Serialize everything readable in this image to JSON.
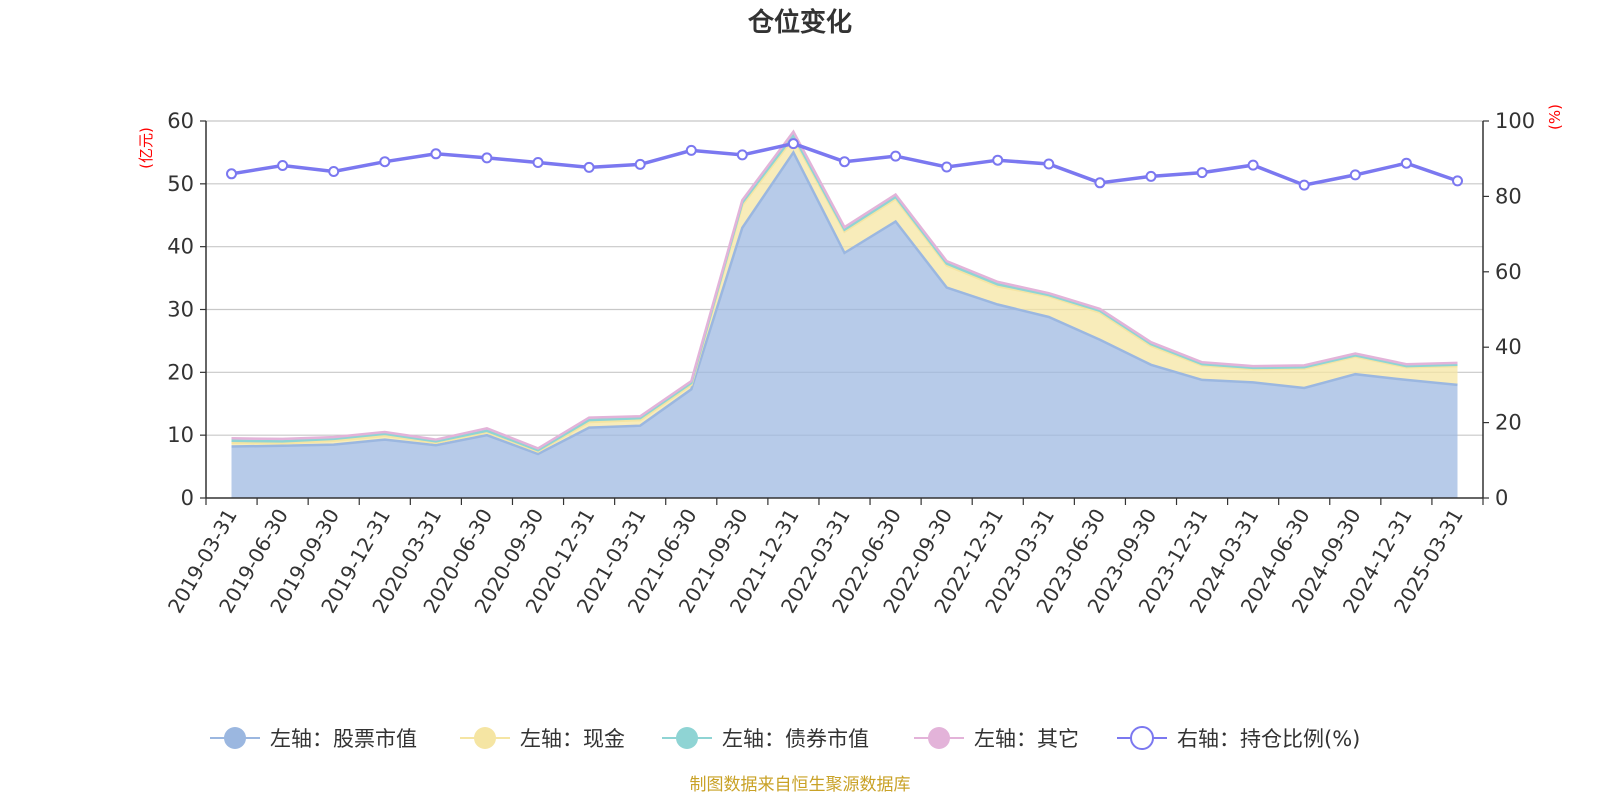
{
  "chart_data": {
    "type": "area",
    "title": "仓位变化",
    "left_axis_unit": "(亿元)",
    "right_axis_unit": "(%)",
    "ylim_left": [
      0,
      60
    ],
    "yticks_left": [
      0,
      10,
      20,
      30,
      40,
      50,
      60
    ],
    "ylim_right": [
      0,
      100
    ],
    "yticks_right": [
      0,
      20,
      40,
      60,
      80,
      100
    ],
    "grid": true,
    "legend_position": "bottom",
    "categories": [
      "2019-03-31",
      "2019-06-30",
      "2019-09-30",
      "2019-12-31",
      "2020-03-31",
      "2020-06-30",
      "2020-09-30",
      "2020-12-31",
      "2021-03-31",
      "2021-06-30",
      "2021-09-30",
      "2021-12-31",
      "2022-03-31",
      "2022-06-30",
      "2022-09-30",
      "2022-12-31",
      "2023-03-31",
      "2023-06-30",
      "2023-09-30",
      "2023-12-31",
      "2024-03-31",
      "2024-06-30",
      "2024-09-30",
      "2024-12-31",
      "2025-03-31"
    ],
    "series": [
      {
        "name": "左轴：股票市值",
        "axis": "left",
        "stack": true,
        "color": "#9bb7e0",
        "values": [
          8.2,
          8.3,
          8.5,
          9.3,
          8.4,
          10.0,
          7.0,
          11.2,
          11.5,
          17.3,
          43.0,
          55.0,
          39.0,
          44.0,
          33.5,
          30.8,
          28.8,
          25.2,
          21.2,
          18.8,
          18.4,
          17.5,
          19.7,
          18.8,
          18.0
        ]
      },
      {
        "name": "左轴：现金",
        "axis": "left",
        "stack": true,
        "color": "#f5e5a3",
        "values": [
          0.6,
          0.4,
          0.6,
          0.6,
          0.4,
          0.5,
          0.4,
          0.9,
          0.9,
          0.7,
          3.6,
          2.3,
          3.4,
          3.6,
          3.5,
          2.9,
          3.3,
          4.3,
          3.0,
          2.3,
          2.1,
          3.1,
          2.8,
          2.0,
          3.0
        ]
      },
      {
        "name": "左轴：债券市值",
        "axis": "left",
        "stack": true,
        "color": "#8fd4d4",
        "values": [
          0.3,
          0.3,
          0.3,
          0.3,
          0.2,
          0.2,
          0.2,
          0.3,
          0.3,
          0.3,
          0.4,
          0.4,
          0.3,
          0.3,
          0.3,
          0.3,
          0.2,
          0.3,
          0.3,
          0.2,
          0.2,
          0.2,
          0.2,
          0.2,
          0.2
        ]
      },
      {
        "name": "左轴：其它",
        "axis": "left",
        "stack": true,
        "color": "#e3b3d9",
        "values": [
          0.4,
          0.4,
          0.3,
          0.3,
          0.3,
          0.4,
          0.3,
          0.4,
          0.3,
          0.3,
          0.4,
          0.6,
          0.4,
          0.4,
          0.4,
          0.4,
          0.3,
          0.3,
          0.3,
          0.3,
          0.3,
          0.3,
          0.3,
          0.3,
          0.3
        ]
      },
      {
        "name": "右轴：持仓比例(%)",
        "axis": "right",
        "type": "line",
        "color": "#7b78f0",
        "values": [
          86.0,
          88.2,
          86.6,
          89.2,
          91.3,
          90.2,
          89.0,
          87.7,
          88.5,
          92.2,
          91.0,
          94.0,
          89.2,
          90.7,
          87.8,
          89.6,
          88.6,
          83.6,
          85.3,
          86.3,
          88.3,
          83.0,
          85.7,
          88.8,
          84.1
        ]
      }
    ]
  },
  "footer": {
    "source": "制图数据来自恒生聚源数据库"
  }
}
